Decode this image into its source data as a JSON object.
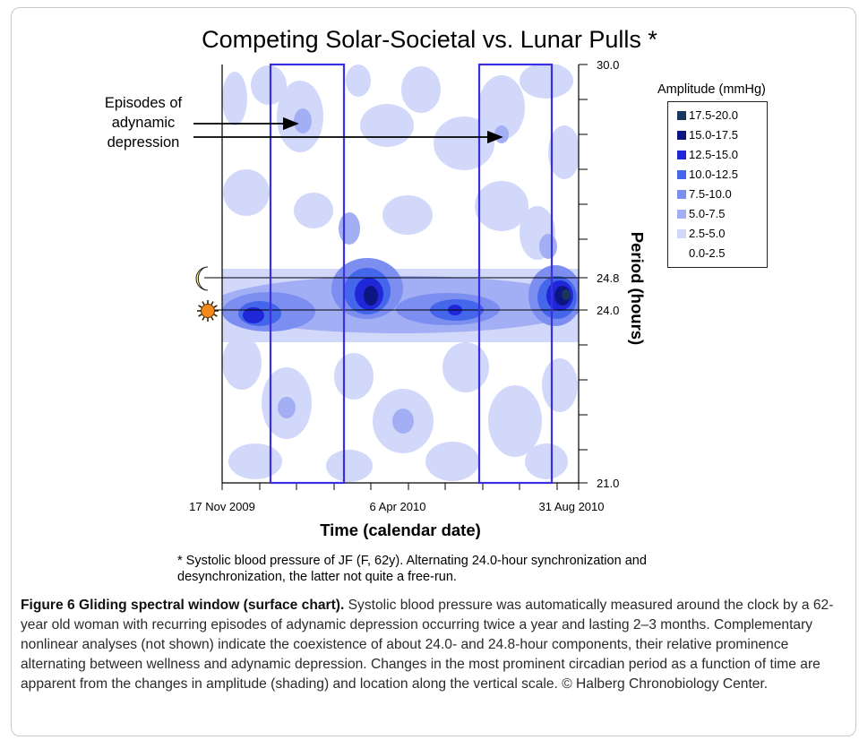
{
  "chart_data": {
    "type": "heatmap",
    "title": "Competing Solar-Societal vs. Lunar Pulls *",
    "xlabel": "Time (calendar date)",
    "ylabel": "Period (hours)",
    "x_ticks": [
      "17 Nov 2009",
      "6 Apr 2010",
      "31 Aug 2010"
    ],
    "y_ticks": [
      "30.0",
      "24.8",
      "24.0",
      "21.0"
    ],
    "y_tick_values": [
      30.0,
      24.8,
      24.0,
      21.0
    ],
    "legend_title": "Amplitude (mmHg)",
    "legend": [
      {
        "label": "17.5-20.0",
        "color": "#17375e"
      },
      {
        "label": "15.0-17.5",
        "color": "#0d1580"
      },
      {
        "label": "12.5-15.0",
        "color": "#1f27d8"
      },
      {
        "label": "10.0-12.5",
        "color": "#4466ea"
      },
      {
        "label": "7.5-10.0",
        "color": "#7c8ef0"
      },
      {
        "label": "5.0-7.5",
        "color": "#a3aff4"
      },
      {
        "label": "2.5-5.0",
        "color": "#d2d8fa"
      },
      {
        "label": "0.0-2.5",
        "color": "#ffffff"
      }
    ],
    "reference_lines": [
      {
        "period": 24.8,
        "marker": "moon-icon"
      },
      {
        "period": 24.0,
        "marker": "sun-icon"
      }
    ],
    "annotation": "Episodes of adynamic depression",
    "annotation_lines": [
      "Episodes of",
      "adynamic",
      "depression"
    ],
    "highlight_color": "#3b30e0",
    "band_color": "#0d1580"
  },
  "footnote": "* Systolic blood pressure of JF (F, 62y). Alternating 24.0-hour synchronization and desynchronization, the latter not quite a free-run.",
  "caption": {
    "label": "Figure 6 Gliding spectral window (surface chart).",
    "text": " Systolic blood pressure was automatically measured around the clock by a 62-year old woman with recurring episodes of adynamic depression occurring twice a year and lasting 2–3 months. Complementary nonlinear analyses (not shown) indicate the coexistence of about 24.0- and 24.8-hour components, their relative prominence alternating between wellness and adynamic depression. Changes in the most prominent circadian period as a function of time are apparent from the changes in amplitude (shading) and location along the vertical scale. © Halberg Chronobiology Center."
  }
}
